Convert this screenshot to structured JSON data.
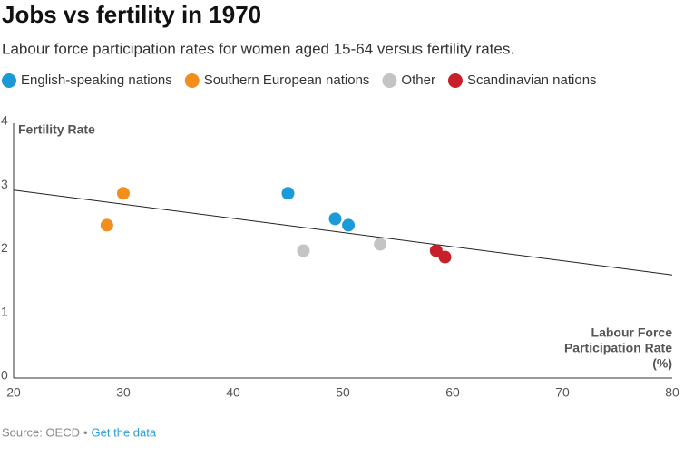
{
  "chart_data": {
    "type": "scatter",
    "title": "Jobs vs fertility in 1970",
    "subtitle": "Labour force participation rates for women aged 15-64 versus fertility rates.",
    "ylabel": "Fertility Rate",
    "xlabel_lines": [
      "Labour Force",
      "Participation Rate",
      "(%)"
    ],
    "xlim": [
      20,
      80
    ],
    "ylim": [
      0,
      4
    ],
    "xticks": [
      20,
      30,
      40,
      50,
      60,
      70,
      80
    ],
    "yticks": [
      0,
      1,
      2,
      3,
      4
    ],
    "grid": false,
    "series": [
      {
        "name": "English-speaking nations",
        "color": "#1a9bd7",
        "x": [
          45.0,
          49.3,
          50.5
        ],
        "values": [
          2.9,
          2.5,
          2.4
        ]
      },
      {
        "name": "Southern European nations",
        "color": "#f28e1c",
        "x": [
          30.0,
          28.5
        ],
        "values": [
          2.9,
          2.4
        ]
      },
      {
        "name": "Other",
        "color": "#c4c4c4",
        "x": [
          46.4,
          53.4
        ],
        "values": [
          2.0,
          2.1
        ]
      },
      {
        "name": "Scandinavian nations",
        "color": "#c8202a",
        "x": [
          58.5,
          59.3
        ],
        "values": [
          2.0,
          1.9
        ]
      }
    ],
    "trendline": {
      "x": [
        20,
        80
      ],
      "values": [
        2.95,
        1.62
      ]
    },
    "source": "Source: OECD",
    "source_separator": "•",
    "source_link": "Get the data"
  }
}
